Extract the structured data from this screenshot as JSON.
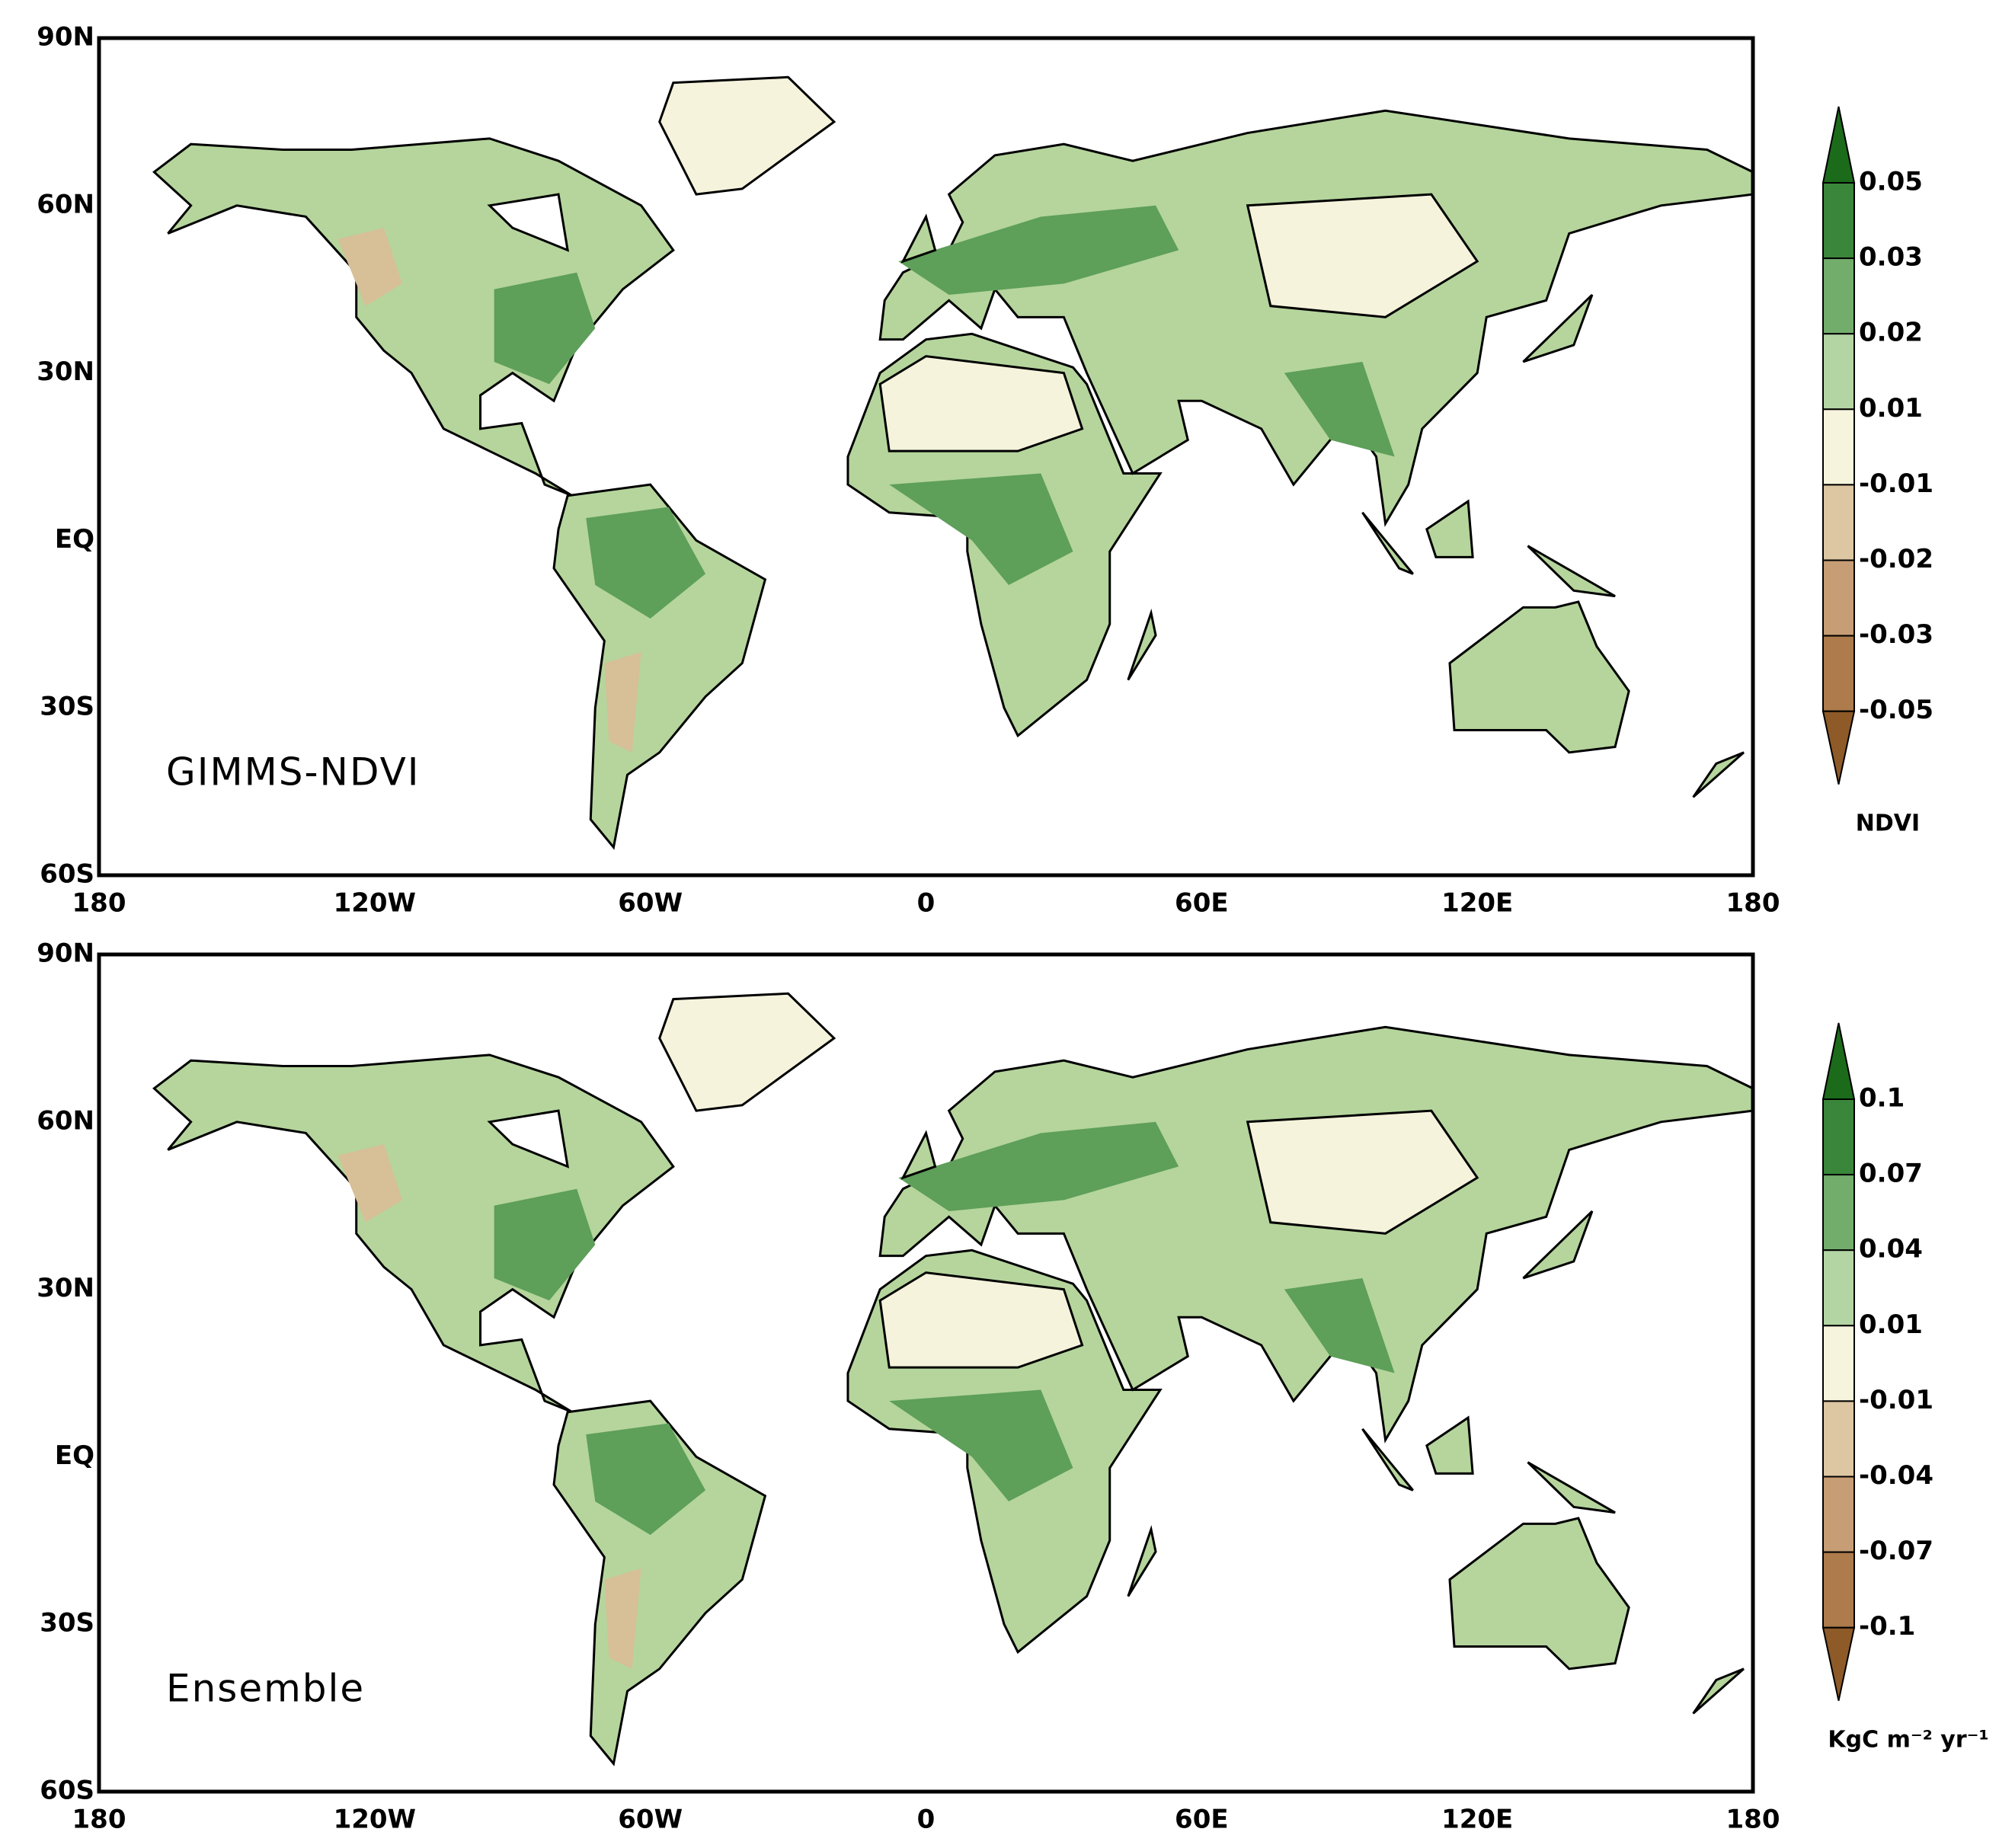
{
  "panels": [
    {
      "label": "GIMMS-NDVI",
      "lat_labels": [
        "90N",
        "60N",
        "30N",
        "EQ",
        "30S",
        "60S"
      ],
      "lon_labels": [
        "180",
        "120W",
        "60W",
        "0",
        "60E",
        "120E",
        "180"
      ],
      "colorbar": {
        "title": "NDVI",
        "labels": [
          "0.05",
          "0.03",
          "0.02",
          "0.01",
          "-0.01",
          "-0.02",
          "-0.03",
          "-0.05"
        ],
        "colors": [
          "#1b6b1b",
          "#3a863a",
          "#72ad6c",
          "#b3d5a4",
          "#f6f4dc",
          "#ddc6a2",
          "#c69d74",
          "#ad7b4c",
          "#8d5a28"
        ]
      }
    },
    {
      "label": "Ensemble",
      "lat_labels": [
        "90N",
        "60N",
        "30N",
        "EQ",
        "30S",
        "60S"
      ],
      "lon_labels": [
        "180",
        "120W",
        "60W",
        "0",
        "60E",
        "120E",
        "180"
      ],
      "colorbar": {
        "title": "KgC m⁻² yr⁻¹",
        "labels": [
          "0.1",
          "0.07",
          "0.04",
          "0.01",
          "-0.01",
          "-0.04",
          "-0.07",
          "-0.1"
        ],
        "colors": [
          "#1b6b1b",
          "#3a863a",
          "#72ad6c",
          "#b3d5a4",
          "#f6f4dc",
          "#ddc6a2",
          "#c69d74",
          "#ad7b4c",
          "#8d5a28"
        ]
      }
    }
  ]
}
